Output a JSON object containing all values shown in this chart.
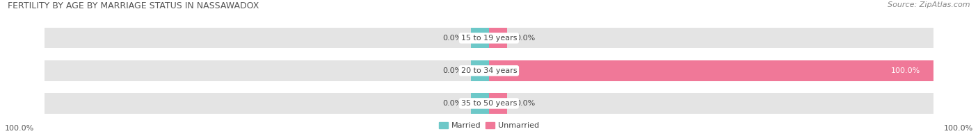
{
  "title": "FERTILITY BY AGE BY MARRIAGE STATUS IN NASSAWADOX",
  "source": "Source: ZipAtlas.com",
  "categories": [
    "15 to 19 years",
    "20 to 34 years",
    "35 to 50 years"
  ],
  "married_values": [
    0.0,
    0.0,
    0.0
  ],
  "unmarried_values": [
    0.0,
    100.0,
    0.0
  ],
  "married_color": "#6dc8c8",
  "unmarried_color": "#f07898",
  "bar_bg_color": "#e4e4e4",
  "bar_height": 0.62,
  "title_fontsize": 9,
  "label_fontsize": 8,
  "tick_fontsize": 8,
  "source_fontsize": 8,
  "legend_married": "Married",
  "legend_unmarried": "Unmarried"
}
